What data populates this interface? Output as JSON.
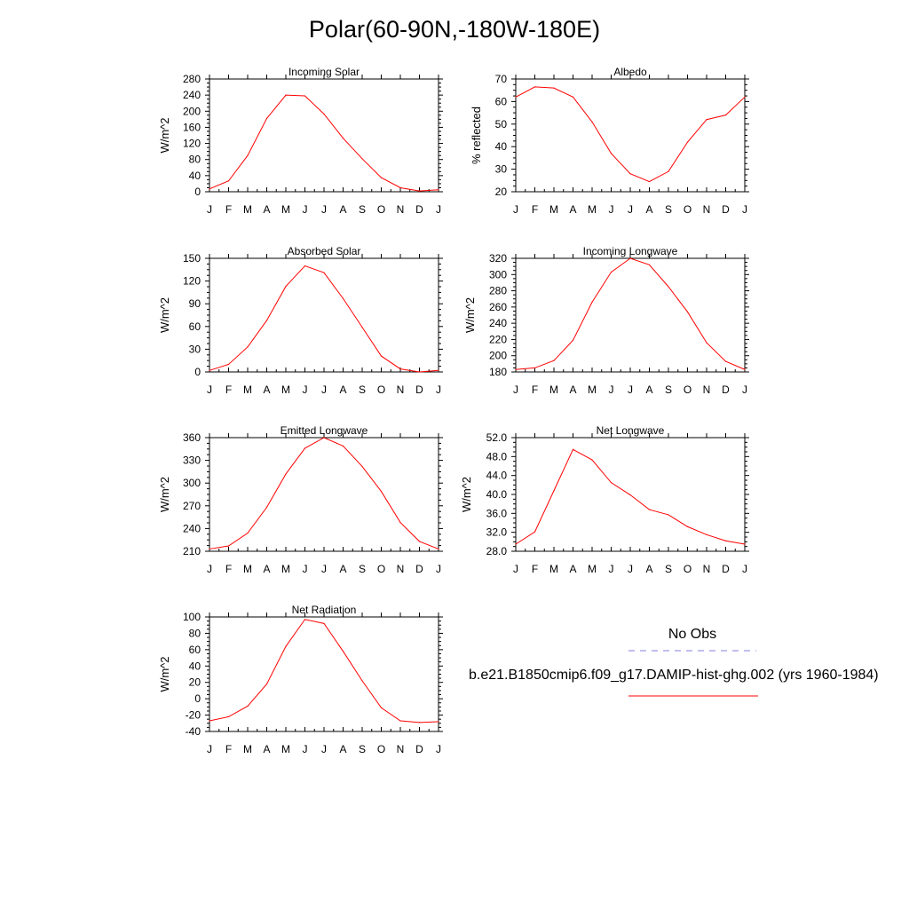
{
  "title": "Polar(60-90N,-180W-180E)",
  "legend": {
    "obs_label": "No Obs",
    "obs_color": "#8080e0",
    "model_label": "b.e21.B1850cmip6.f09_g17.DAMIP-hist-ghg.002 (yrs 1960-1984)",
    "model_color": "#ff0000"
  },
  "chart_data": [
    {
      "type": "line",
      "title": "Incoming Solar",
      "ylabel": "W/m^2",
      "categories": [
        "J",
        "F",
        "M",
        "A",
        "M",
        "J",
        "J",
        "A",
        "S",
        "O",
        "N",
        "D",
        "J"
      ],
      "ylim": [
        0,
        280
      ],
      "yticks": [
        "0",
        "40",
        "80",
        "120",
        "160",
        "200",
        "240",
        "280"
      ],
      "series": [
        {
          "values": [
            7,
            27,
            90,
            182,
            240,
            238,
            193,
            133,
            82,
            35,
            10,
            2,
            5
          ]
        }
      ]
    },
    {
      "type": "line",
      "title": "Albedo",
      "ylabel": "% reflected",
      "categories": [
        "J",
        "F",
        "M",
        "A",
        "M",
        "J",
        "J",
        "A",
        "S",
        "O",
        "N",
        "D",
        "J"
      ],
      "ylim": [
        20,
        70
      ],
      "yticks": [
        "20",
        "30",
        "40",
        "50",
        "60",
        "70"
      ],
      "series": [
        {
          "values": [
            62,
            66.5,
            66,
            62,
            51,
            37,
            28,
            24.5,
            29,
            42,
            52,
            54,
            62
          ]
        }
      ]
    },
    {
      "type": "line",
      "title": "Absorbed Solar",
      "ylabel": "W/m^2",
      "categories": [
        "J",
        "F",
        "M",
        "A",
        "M",
        "J",
        "J",
        "A",
        "S",
        "O",
        "N",
        "D",
        "J"
      ],
      "ylim": [
        0,
        150
      ],
      "yticks": [
        "0",
        "30",
        "60",
        "90",
        "120",
        "150"
      ],
      "series": [
        {
          "values": [
            2,
            10,
            33,
            68,
            113,
            140,
            131,
            97,
            59,
            21,
            4,
            0,
            2
          ]
        }
      ]
    },
    {
      "type": "line",
      "title": "Incoming Longwave",
      "ylabel": "W/m^2",
      "categories": [
        "J",
        "F",
        "M",
        "A",
        "M",
        "J",
        "J",
        "A",
        "S",
        "O",
        "N",
        "D",
        "J"
      ],
      "ylim": [
        180,
        320
      ],
      "yticks": [
        "180",
        "200",
        "220",
        "240",
        "260",
        "280",
        "300",
        "320"
      ],
      "series": [
        {
          "values": [
            183,
            185,
            194,
            219,
            266,
            303,
            320,
            312,
            285,
            254,
            216,
            193,
            183
          ]
        }
      ]
    },
    {
      "type": "line",
      "title": "Emitted Longwave",
      "ylabel": "W/m^2",
      "categories": [
        "J",
        "F",
        "M",
        "A",
        "M",
        "J",
        "J",
        "A",
        "S",
        "O",
        "N",
        "D",
        "J"
      ],
      "ylim": [
        210,
        360
      ],
      "yticks": [
        "210",
        "240",
        "270",
        "300",
        "330",
        "360"
      ],
      "series": [
        {
          "values": [
            213,
            217,
            234,
            268,
            312,
            346,
            360,
            349,
            322,
            289,
            248,
            223,
            213
          ]
        }
      ]
    },
    {
      "type": "line",
      "title": "Net Longwave",
      "ylabel": "W/m^2",
      "categories": [
        "J",
        "F",
        "M",
        "A",
        "M",
        "J",
        "J",
        "A",
        "S",
        "O",
        "N",
        "D",
        "J"
      ],
      "ylim": [
        28,
        52
      ],
      "yticks": [
        "28.0",
        "32.0",
        "36.0",
        "40.0",
        "44.0",
        "48.0",
        "52.0"
      ],
      "series": [
        {
          "values": [
            29.5,
            32.1,
            40.8,
            49.5,
            47.3,
            42.5,
            39.9,
            36.8,
            35.7,
            33.2,
            31.5,
            30.2,
            29.5
          ]
        }
      ]
    },
    {
      "type": "line",
      "title": "Net Radiation",
      "ylabel": "W/m^2",
      "categories": [
        "J",
        "F",
        "M",
        "A",
        "M",
        "J",
        "J",
        "A",
        "S",
        "O",
        "N",
        "D",
        "J"
      ],
      "ylim": [
        -40,
        100
      ],
      "yticks": [
        "-40",
        "-20",
        "0",
        "20",
        "40",
        "60",
        "80",
        "100"
      ],
      "series": [
        {
          "values": [
            -27,
            -22,
            -9,
            18,
            64,
            97,
            92,
            58,
            22,
            -11,
            -27,
            -29,
            -28
          ]
        }
      ]
    }
  ]
}
